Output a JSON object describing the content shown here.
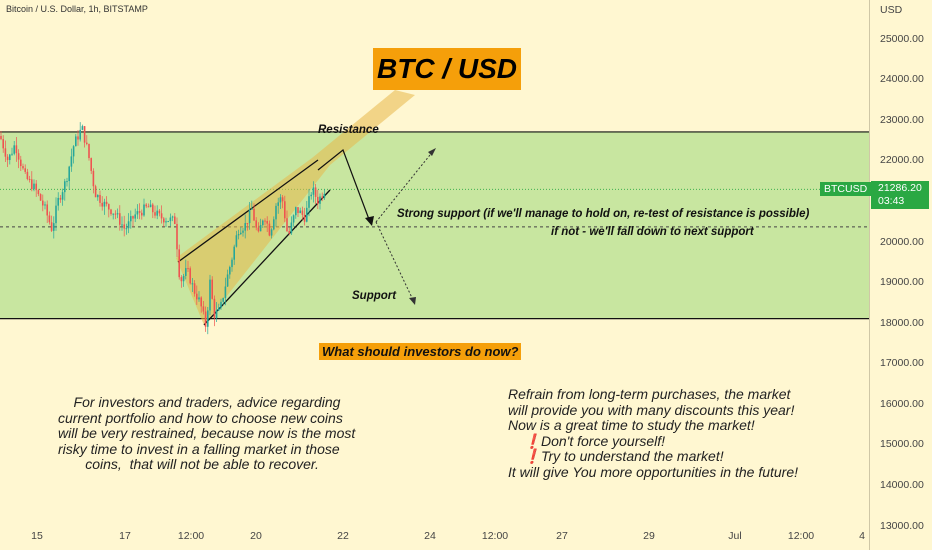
{
  "header": {
    "title": "Bitcoin / U.S. Dollar, 1h, BITSTAMP"
  },
  "price_axis": {
    "currency": "USD"
  },
  "last_price": {
    "symbol": "BTCUSD",
    "price": "21286.20",
    "countdown": "03:43"
  },
  "banner": "BTC / USD",
  "labels": {
    "resistance": "Resistance",
    "support": "Support",
    "strong_support": "Strong support (if we'll manage to hold on,  re-test of resistance is possible)",
    "if_not": "if not - we'll fall down to next support",
    "question": "What should investors do now?"
  },
  "paragraphs": {
    "left": "    For investors and traders, advice regarding\ncurrent portfolio and how to choose new coins\nwill be very restrained, because now is the most\nrisky time to invest in a falling market in those\n       coins,  that will not be able to recover.",
    "right": "Refrain from long-term purchases, the market\nwill provide you with many discounts this year!\nNow is a great time to study the market!\n    ❗Don't force yourself!\n    ❗Try to understand the market!\nIt will give You more opportunities in the future!"
  },
  "colors": {
    "background": "#fff7d1",
    "zone": "#c8e6a0",
    "up": "#26a69a",
    "down": "#ef5350",
    "wedge": "#e8b84a",
    "accent": "#f59f0a",
    "badge": "#2aa843"
  },
  "chart_data": {
    "type": "candlestick",
    "y_ticks": [
      13000,
      14000,
      15000,
      16000,
      17000,
      18000,
      19000,
      20000,
      21000,
      22000,
      23000,
      24000,
      25000
    ],
    "ylim": [
      12400,
      25950
    ],
    "x_ticks": [
      "15",
      "17",
      "12:00",
      "20",
      "22",
      "24",
      "12:00",
      "27",
      "29",
      "Jul",
      "12:00",
      "4"
    ],
    "resistance": 22700,
    "support": 18100,
    "mid_level": 20360,
    "last_price": 21286.2,
    "close_path": [
      {
        "t": 0,
        "v": 22600
      },
      {
        "t": 8,
        "v": 22000
      },
      {
        "t": 15,
        "v": 22400
      },
      {
        "t": 25,
        "v": 21600
      },
      {
        "t": 35,
        "v": 21300
      },
      {
        "t": 45,
        "v": 20800
      },
      {
        "t": 52,
        "v": 20300
      },
      {
        "t": 58,
        "v": 21000
      },
      {
        "t": 66,
        "v": 21500
      },
      {
        "t": 74,
        "v": 22400
      },
      {
        "t": 82,
        "v": 22800
      },
      {
        "t": 88,
        "v": 22200
      },
      {
        "t": 95,
        "v": 21200
      },
      {
        "t": 105,
        "v": 20900
      },
      {
        "t": 115,
        "v": 20700
      },
      {
        "t": 125,
        "v": 20300
      },
      {
        "t": 135,
        "v": 20650
      },
      {
        "t": 148,
        "v": 20850
      },
      {
        "t": 160,
        "v": 20600
      },
      {
        "t": 175,
        "v": 20500
      },
      {
        "t": 180,
        "v": 19000
      },
      {
        "t": 187,
        "v": 19300
      },
      {
        "t": 194,
        "v": 18800
      },
      {
        "t": 200,
        "v": 18500
      },
      {
        "t": 206,
        "v": 17900
      },
      {
        "t": 210,
        "v": 19000
      },
      {
        "t": 214,
        "v": 18200
      },
      {
        "t": 220,
        "v": 18300
      },
      {
        "t": 226,
        "v": 19000
      },
      {
        "t": 232,
        "v": 19600
      },
      {
        "t": 238,
        "v": 20300
      },
      {
        "t": 245,
        "v": 20400
      },
      {
        "t": 252,
        "v": 20800
      },
      {
        "t": 258,
        "v": 20100
      },
      {
        "t": 264,
        "v": 20700
      },
      {
        "t": 270,
        "v": 20200
      },
      {
        "t": 276,
        "v": 20900
      },
      {
        "t": 282,
        "v": 21100
      },
      {
        "t": 288,
        "v": 20100
      },
      {
        "t": 296,
        "v": 20800
      },
      {
        "t": 305,
        "v": 20600
      },
      {
        "t": 312,
        "v": 21300
      },
      {
        "t": 318,
        "v": 21000
      },
      {
        "t": 325,
        "v": 21300
      }
    ]
  }
}
